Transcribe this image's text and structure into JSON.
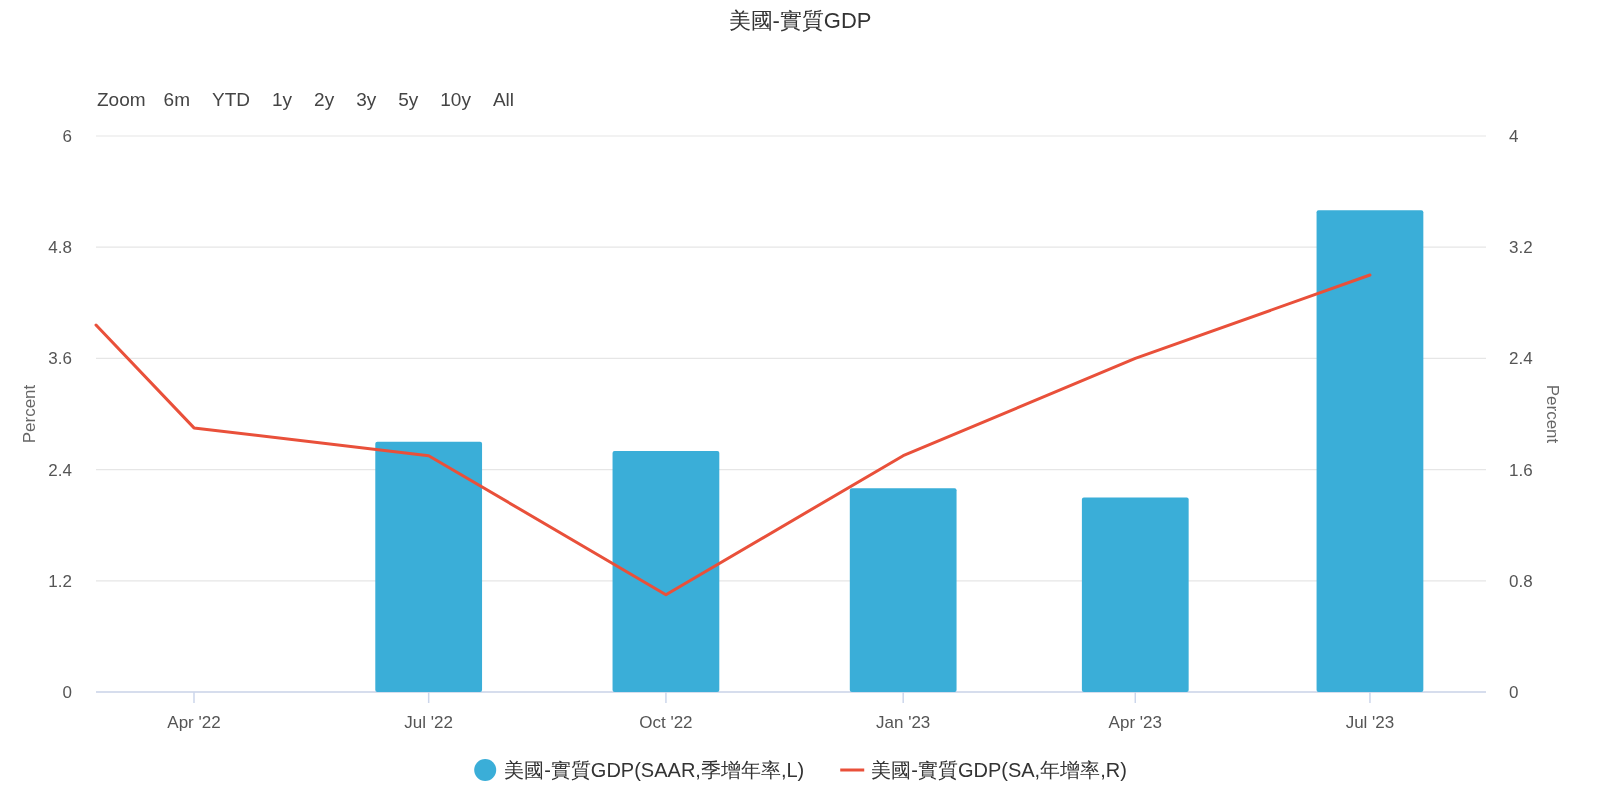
{
  "chart_data": {
    "type": "bar",
    "title": "美國-實質GDP",
    "ylabel": "Percent",
    "y2label": "Percent",
    "xlim": [
      "2022-02-22",
      "2023-08-15"
    ],
    "xticks": [
      {
        "value": "2022-04",
        "label": "Apr '22"
      },
      {
        "value": "2022-07",
        "label": "Jul '22"
      },
      {
        "value": "2022-10",
        "label": "Oct '22"
      },
      {
        "value": "2023-01",
        "label": "Jan '23"
      },
      {
        "value": "2023-04",
        "label": "Apr '23"
      },
      {
        "value": "2023-07",
        "label": "Jul '23"
      }
    ],
    "ylim": [
      0,
      6
    ],
    "yticks": [
      0,
      1.2,
      2.4,
      3.6,
      4.8,
      6
    ],
    "y2lim": [
      0,
      4
    ],
    "y2ticks": [
      0,
      0.8,
      1.6,
      2.4,
      3.2,
      4
    ],
    "series": [
      {
        "name": "美國-實質GDP(SAAR,季增年率,L)",
        "color": "#3aaed8",
        "x": [
          "2022-07",
          "2022-10",
          "2023-01",
          "2023-04",
          "2023-07"
        ],
        "values": [
          2.7,
          2.6,
          2.2,
          2.1,
          5.2
        ]
      },
      {
        "name": "美國-實質GDP(SA,年增率,R)",
        "type": "line",
        "axis": "y2",
        "color": "#e9503a",
        "x": [
          "2022-02-22",
          "2022-04",
          "2022-07",
          "2022-10",
          "2023-01",
          "2023-04",
          "2023-07"
        ],
        "values": [
          2.64,
          1.9,
          1.7,
          0.7,
          1.7,
          2.4,
          3.0
        ]
      }
    ],
    "grid": "y",
    "legend": "bottom",
    "annotations": [
      "Zoom",
      "6m",
      "YTD",
      "1y",
      "2y",
      "3y",
      "5y",
      "10y",
      "All"
    ]
  }
}
